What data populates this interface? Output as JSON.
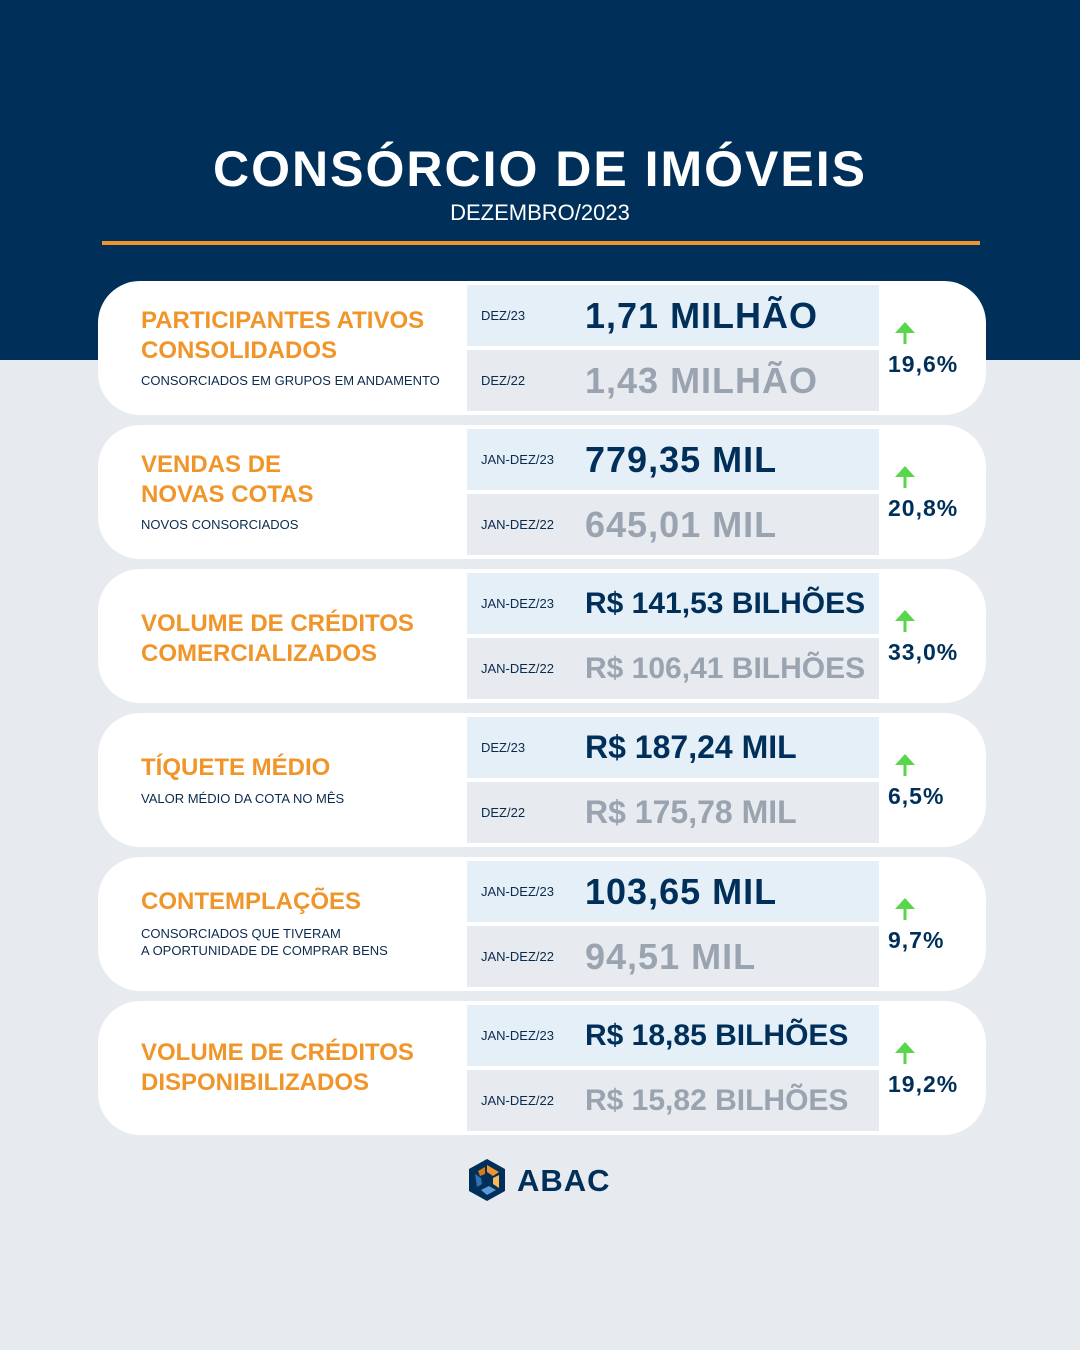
{
  "header": {
    "title": "CONSÓRCIO DE IMÓVEIS",
    "subtitle": "DEZEMBRO/2023"
  },
  "colors": {
    "navy": "#00305a",
    "orange": "#f0952a",
    "arrow_green": "#5ad64a",
    "muted_value": "#9aa3b0"
  },
  "cards": [
    {
      "title": "PARTICIPANTES ATIVOS CONSOLIDADOS",
      "description": "CONSORCIADOS EM GRUPOS EM ANDAMENTO",
      "current": {
        "period": "DEZ/23",
        "value": "1,71 MILHÃO"
      },
      "previous": {
        "period": "DEZ/22",
        "value": "1,43 MILHÃO"
      },
      "change": "19,6%",
      "trend_icon": "arrow-up-icon"
    },
    {
      "title": "VENDAS DE NOVAS COTAS",
      "description": "NOVOS CONSORCIADOS",
      "current": {
        "period": "JAN-DEZ/23",
        "value": "779,35 MIL"
      },
      "previous": {
        "period": "JAN-DEZ/22",
        "value": "645,01 MIL"
      },
      "change": "20,8%",
      "trend_icon": "arrow-up-icon"
    },
    {
      "title": "VOLUME DE CRÉDITOS COMERCIALIZADOS",
      "description": "",
      "current": {
        "period": "JAN-DEZ/23",
        "value": "R$ 141,53 BILHÕES"
      },
      "previous": {
        "period": "JAN-DEZ/22",
        "value": "R$ 106,41 BILHÕES"
      },
      "change": "33,0%",
      "trend_icon": "arrow-up-icon"
    },
    {
      "title": "TÍQUETE MÉDIO",
      "description": "VALOR MÉDIO DA COTA NO MÊS",
      "current": {
        "period": "DEZ/23",
        "value": "R$ 187,24 MIL"
      },
      "previous": {
        "period": "DEZ/22",
        "value": "R$ 175,78 MIL"
      },
      "change": "6,5%",
      "trend_icon": "arrow-up-icon"
    },
    {
      "title": "CONTEMPLAÇÕES",
      "description_line1": "CONSORCIADOS QUE TIVERAM",
      "description_line2": "A OPORTUNIDADE DE COMPRAR BENS",
      "current": {
        "period": "JAN-DEZ/23",
        "value": "103,65 MIL"
      },
      "previous": {
        "period": "JAN-DEZ/22",
        "value": "94,51 MIL"
      },
      "change": "9,7%",
      "trend_icon": "arrow-up-icon"
    },
    {
      "title": "VOLUME DE CRÉDITOS DISPONIBILIZADOS",
      "description": "",
      "current": {
        "period": "JAN-DEZ/23",
        "value": "R$ 18,85 BILHÕES"
      },
      "previous": {
        "period": "JAN-DEZ/22",
        "value": "R$ 15,82 BILHÕES"
      },
      "change": "19,2%",
      "trend_icon": "arrow-up-icon"
    }
  ],
  "footer": {
    "logo_text": "ABAC",
    "logo_icon": "abac-logo-icon"
  }
}
